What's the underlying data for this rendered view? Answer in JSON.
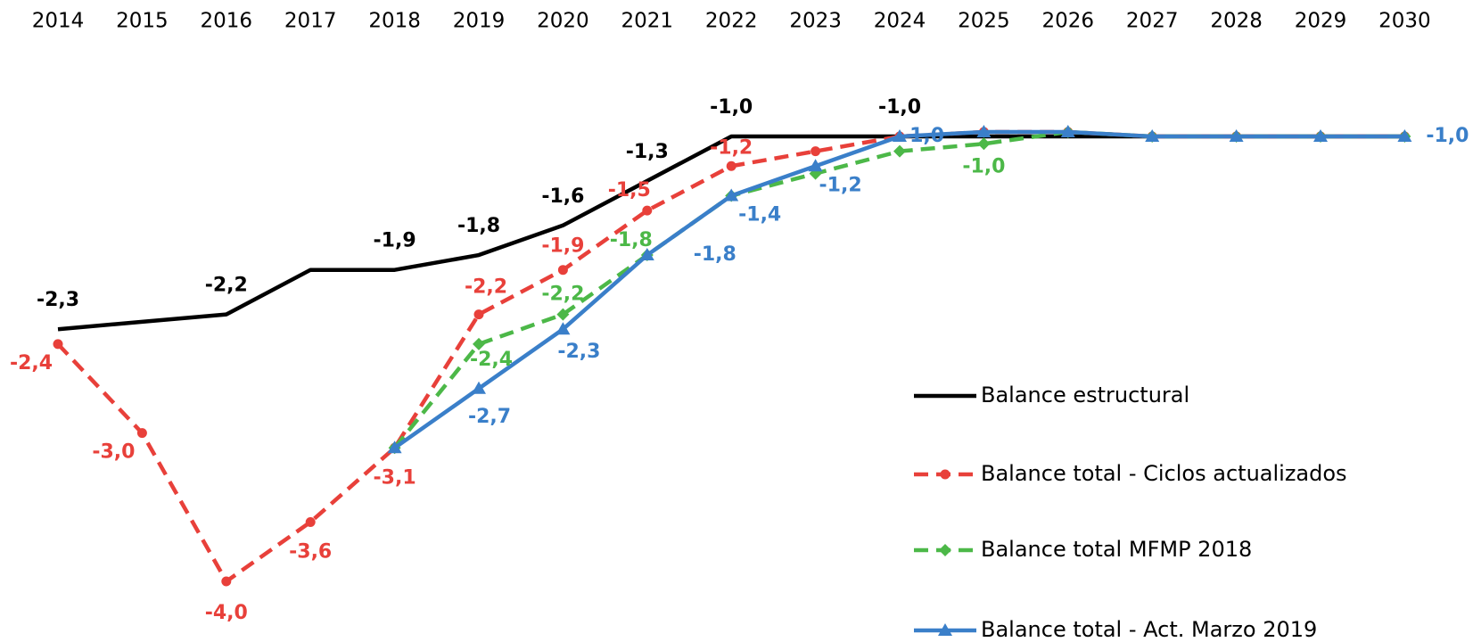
{
  "chart_data": {
    "type": "line",
    "categories": [
      "2014",
      "2015",
      "2016",
      "2017",
      "2018",
      "2019",
      "2020",
      "2021",
      "2022",
      "2023",
      "2024",
      "2025",
      "2026",
      "2027",
      "2028",
      "2029",
      "2030"
    ],
    "series": [
      {
        "name": "Balance estructural",
        "color": "#000000",
        "dash": false,
        "marker": "none",
        "values": [
          -2.3,
          -2.25,
          -2.2,
          -1.9,
          -1.9,
          -1.8,
          -1.6,
          -1.3,
          -1.0,
          -1.0,
          -1.0,
          -1.0,
          -1.0,
          -1.0,
          -1.0,
          -1.0,
          -1.0
        ],
        "value_labels": [
          "-2,3",
          null,
          "-2,2",
          null,
          "-1,9",
          "-1,8",
          "-1,6",
          "-1,3",
          "-1,0",
          null,
          "-1,0",
          null,
          null,
          null,
          null,
          null,
          null
        ]
      },
      {
        "name": "Balance total - Ciclos actualizados",
        "color": "#e8403a",
        "dash": true,
        "marker": "circle",
        "values": [
          -2.4,
          -3.0,
          -4.0,
          -3.6,
          -3.1,
          -2.2,
          -1.9,
          -1.5,
          -1.2,
          -1.1,
          -1.0,
          -0.97,
          -0.97,
          -1.0,
          -1.0,
          -1.0,
          -1.0
        ],
        "value_labels": [
          "-2,4",
          "-3,0",
          "-4,0",
          "-3,6",
          "-3,1",
          "-2,2",
          "-1,9",
          "-1,5",
          "-1,2",
          null,
          null,
          null,
          null,
          null,
          null,
          null,
          null
        ]
      },
      {
        "name": "Balance total MFMP 2018",
        "color": "#4cb848",
        "dash": true,
        "marker": "diamond",
        "values": [
          null,
          null,
          null,
          null,
          -3.1,
          -2.4,
          -2.2,
          -1.8,
          -1.4,
          -1.25,
          -1.1,
          -1.05,
          -0.97,
          -1.0,
          -1.0,
          -1.0,
          -1.0
        ],
        "value_labels": [
          null,
          null,
          null,
          null,
          null,
          "-2,4",
          "-2,2",
          "-1,8",
          null,
          null,
          null,
          "-1,0",
          null,
          null,
          null,
          null,
          null
        ]
      },
      {
        "name": "Balance total - Act. Marzo 2019",
        "color": "#3a7fc9",
        "dash": false,
        "marker": "triangle",
        "values": [
          null,
          null,
          null,
          null,
          -3.1,
          -2.7,
          -2.3,
          -1.8,
          -1.4,
          -1.2,
          -1.0,
          -0.97,
          -0.97,
          -1.0,
          -1.0,
          -1.0,
          -1.0
        ],
        "value_labels": [
          null,
          null,
          null,
          null,
          null,
          "-2,7",
          "-2,3",
          "-1,8",
          "-1,4",
          "-1,2",
          "-1,0",
          null,
          null,
          null,
          null,
          null,
          "-1,0"
        ]
      }
    ]
  }
}
